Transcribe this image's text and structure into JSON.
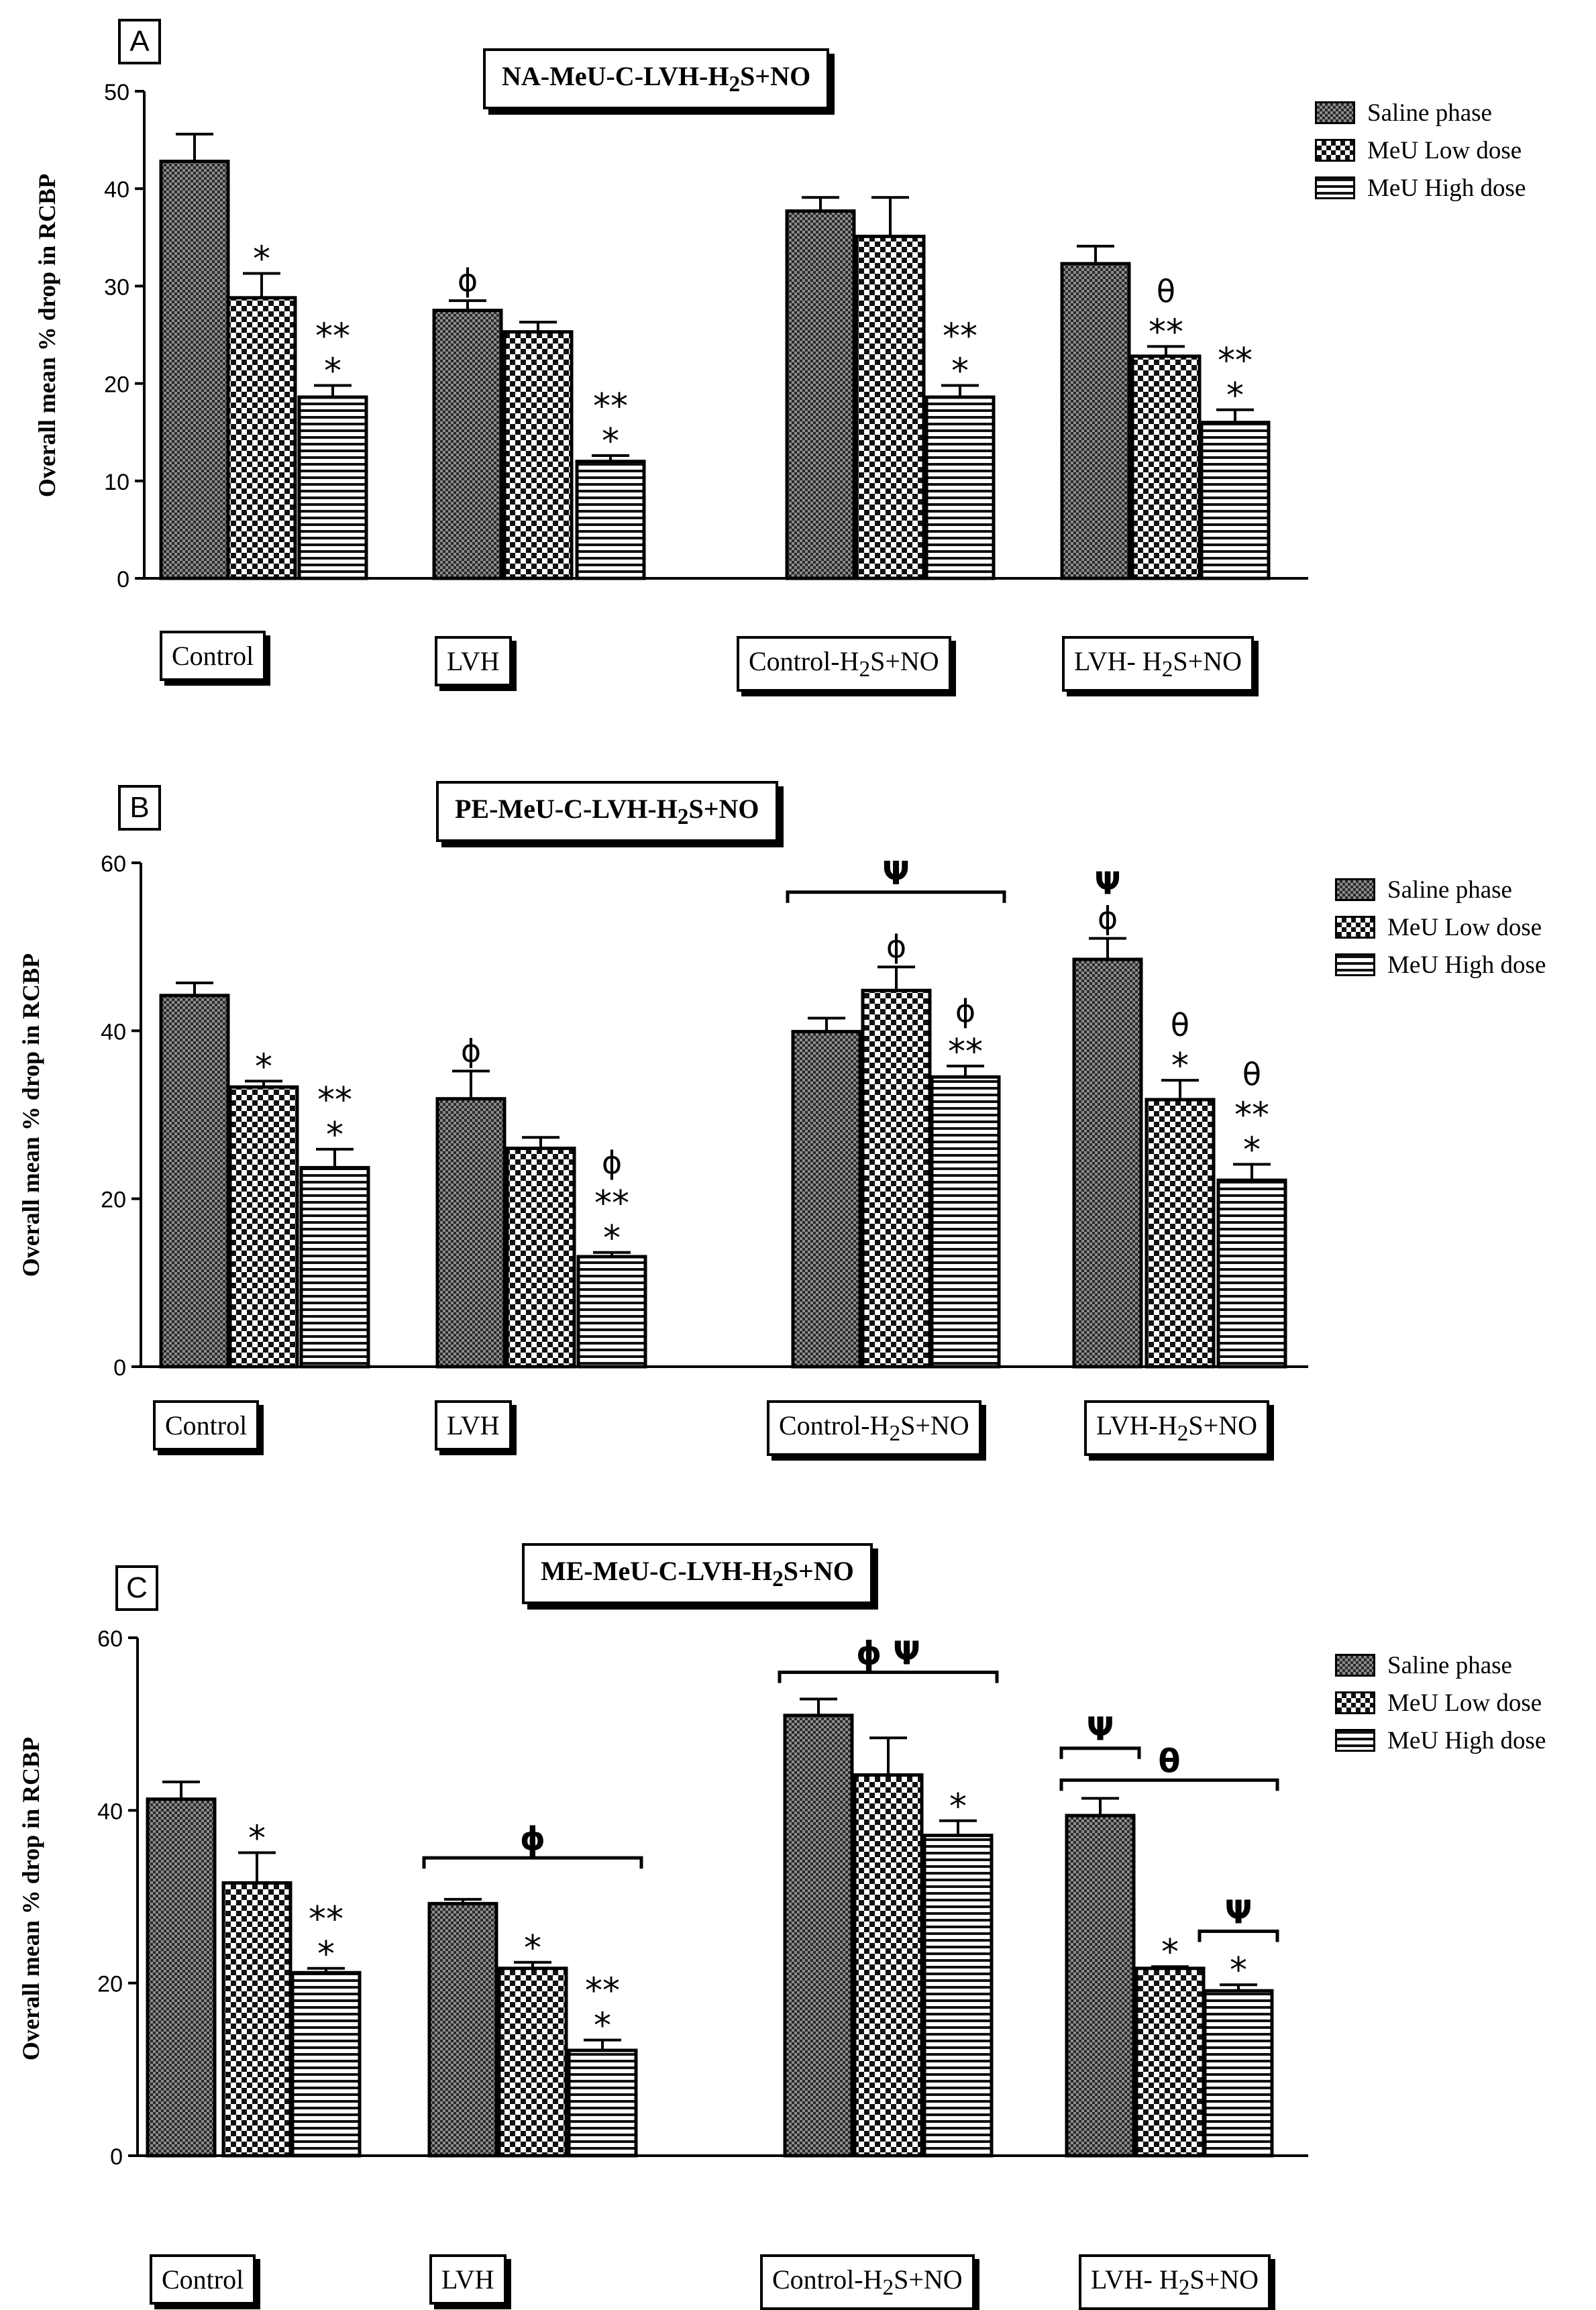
{
  "chart_data": [
    {
      "panel": "A",
      "type": "bar",
      "title": "NA-MeU-C-LVH-H2S+NO",
      "ylabel": "Overall  mean % drop in  RCBP",
      "ylim": [
        0,
        50
      ],
      "yticks": [
        0,
        10,
        20,
        30,
        40,
        50
      ],
      "categories": [
        "Control",
        "LVH",
        "Control-H2S+NO",
        "LVH- H2S+NO"
      ],
      "series": [
        {
          "name": "Saline phase",
          "values": [
            42.8,
            27.5,
            37.7,
            32.3
          ],
          "errors": [
            2.8,
            1.0,
            1.4,
            1.8
          ]
        },
        {
          "name": "MeU Low dose",
          "values": [
            28.8,
            25.3,
            35.1,
            22.8
          ],
          "errors": [
            2.5,
            1.0,
            4.0,
            1.0
          ]
        },
        {
          "name": "MeU High dose",
          "values": [
            18.6,
            12.0,
            18.6,
            16.0
          ],
          "errors": [
            1.2,
            0.6,
            1.2,
            1.3
          ]
        }
      ],
      "annotations": [
        {
          "g": 0,
          "s": 1,
          "lines": [
            "*"
          ]
        },
        {
          "g": 0,
          "s": 2,
          "lines": [
            "**",
            "*"
          ]
        },
        {
          "g": 1,
          "s": 0,
          "lines": [
            "ϕ"
          ]
        },
        {
          "g": 1,
          "s": 2,
          "lines": [
            "**",
            "*"
          ]
        },
        {
          "g": 2,
          "s": 2,
          "lines": [
            "**",
            "*"
          ]
        },
        {
          "g": 3,
          "s": 1,
          "lines": [
            "θ",
            "**"
          ]
        },
        {
          "g": 3,
          "s": 2,
          "lines": [
            "**",
            "*"
          ]
        }
      ],
      "brackets": []
    },
    {
      "panel": "B",
      "type": "bar",
      "title": "PE-MeU-C-LVH-H2S+NO",
      "ylabel": "Overall  mean % drop in  RCBP",
      "ylim": [
        0,
        60
      ],
      "yticks": [
        0,
        20,
        40,
        60
      ],
      "categories": [
        "Control",
        "LVH",
        "Control-H2S+NO",
        "LVH-H2S+NO"
      ],
      "series": [
        {
          "name": "Saline phase",
          "values": [
            44.2,
            31.9,
            39.9,
            48.5
          ],
          "errors": [
            1.5,
            3.3,
            1.6,
            2.5
          ]
        },
        {
          "name": "MeU Low dose",
          "values": [
            33.3,
            26.0,
            44.8,
            31.8
          ],
          "errors": [
            0.7,
            1.3,
            2.8,
            2.3
          ]
        },
        {
          "name": "MeU High dose",
          "values": [
            23.7,
            13.1,
            34.5,
            22.2
          ],
          "errors": [
            2.2,
            0.5,
            1.3,
            1.9
          ]
        }
      ],
      "annotations": [
        {
          "g": 0,
          "s": 1,
          "lines": [
            "*"
          ]
        },
        {
          "g": 0,
          "s": 2,
          "lines": [
            "**",
            "*"
          ]
        },
        {
          "g": 1,
          "s": 0,
          "lines": [
            "ϕ"
          ]
        },
        {
          "g": 1,
          "s": 2,
          "lines": [
            "ϕ",
            "**",
            "*"
          ]
        },
        {
          "g": 2,
          "s": 1,
          "lines": [
            "ϕ"
          ]
        },
        {
          "g": 2,
          "s": 2,
          "lines": [
            "ϕ",
            "**"
          ]
        },
        {
          "g": 3,
          "s": 0,
          "lines": [
            "Ψ",
            "ϕ"
          ]
        },
        {
          "g": 3,
          "s": 1,
          "lines": [
            "θ",
            "*"
          ]
        },
        {
          "g": 3,
          "s": 2,
          "lines": [
            "θ",
            "**",
            "*"
          ]
        }
      ],
      "brackets": [
        {
          "g": 2,
          "from": 0,
          "to": 2,
          "level": 56.5,
          "label": "Ψ"
        }
      ]
    },
    {
      "panel": "C",
      "type": "bar",
      "title": "ME-MeU-C-LVH-H2S+NO",
      "ylabel": "Overall  mean % drop in  RCBP",
      "ylim": [
        0,
        60
      ],
      "yticks": [
        0,
        20,
        40,
        60
      ],
      "categories": [
        "Control",
        "LVH",
        "Control-H2S+NO",
        "LVH- H2S+NO"
      ],
      "series": [
        {
          "name": "Saline phase",
          "values": [
            41.3,
            29.2,
            51.0,
            39.4
          ],
          "errors": [
            2.0,
            0.5,
            1.9,
            2.0
          ]
        },
        {
          "name": "MeU Low dose",
          "values": [
            31.6,
            21.7,
            44.1,
            21.7
          ],
          "errors": [
            3.5,
            0.7,
            4.3,
            0.2
          ]
        },
        {
          "name": "MeU High dose",
          "values": [
            21.2,
            12.2,
            37.1,
            19.1
          ],
          "errors": [
            0.5,
            1.2,
            1.7,
            0.7
          ]
        }
      ],
      "annotations": [
        {
          "g": 0,
          "s": 1,
          "lines": [
            "*"
          ]
        },
        {
          "g": 0,
          "s": 2,
          "lines": [
            "**",
            "*"
          ]
        },
        {
          "g": 1,
          "s": 1,
          "lines": [
            "*"
          ]
        },
        {
          "g": 1,
          "s": 2,
          "lines": [
            "**",
            "*"
          ]
        },
        {
          "g": 2,
          "s": 2,
          "lines": [
            "*"
          ]
        },
        {
          "g": 3,
          "s": 1,
          "lines": [
            "*"
          ]
        },
        {
          "g": 3,
          "s": 2,
          "lines": [
            "*"
          ]
        }
      ],
      "brackets": [
        {
          "g": 1,
          "from": 0,
          "to": 2,
          "level": 34.5,
          "label": "ϕ"
        },
        {
          "g": 2,
          "from": 0,
          "to": 2,
          "level": 56.0,
          "label": "ϕ Ψ"
        },
        {
          "g": 3,
          "from": 0,
          "to": 0,
          "level": 47.2,
          "label": "Ψ"
        },
        {
          "g": 3,
          "from": 0,
          "to": 2,
          "level": 43.5,
          "label": "θ"
        },
        {
          "g": 3,
          "from": 2,
          "to": 2,
          "level": 26.0,
          "label": "Ψ"
        }
      ]
    }
  ],
  "colors": {
    "saline_fill": "#4a4a4a",
    "low_fill": "#ffffff",
    "high_fill": "#ffffff",
    "line": "#000000"
  }
}
